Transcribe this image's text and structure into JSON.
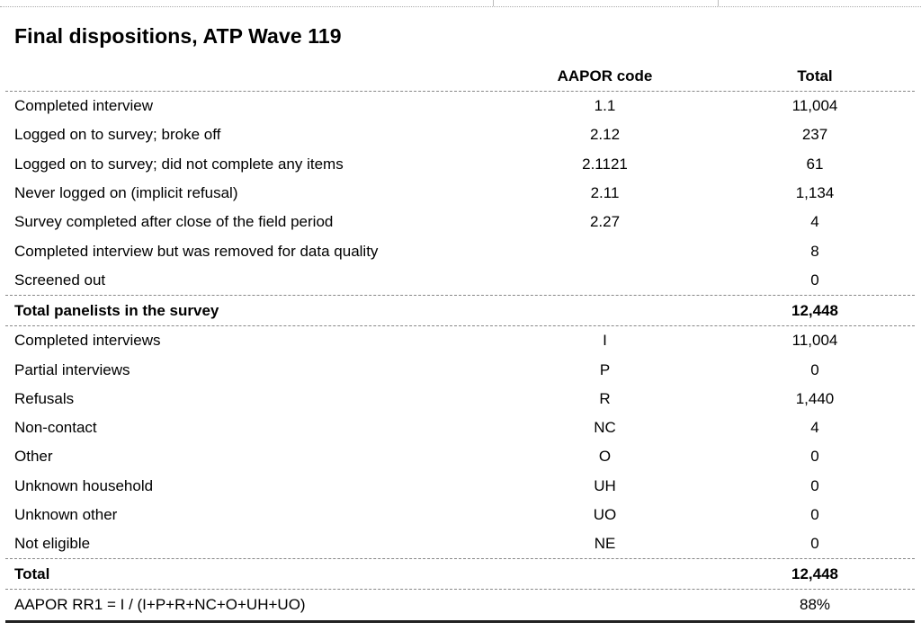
{
  "title": "Final dispositions, ATP Wave 119",
  "columns": {
    "code": "AAPOR code",
    "total": "Total"
  },
  "dispositions": [
    {
      "label": "Completed interview",
      "code": "1.1",
      "total": "11,004"
    },
    {
      "label": "Logged on to survey; broke off",
      "code": "2.12",
      "total": "237"
    },
    {
      "label": "Logged on to survey; did not complete any items",
      "code": "2.1121",
      "total": "61"
    },
    {
      "label": "Never logged on (implicit refusal)",
      "code": "2.11",
      "total": "1,134"
    },
    {
      "label": "Survey completed after close of the field period",
      "code": "2.27",
      "total": "4"
    },
    {
      "label": "Completed interview but was removed for data quality",
      "code": "",
      "total": "8"
    },
    {
      "label": "Screened out",
      "code": "",
      "total": "0"
    }
  ],
  "panel_total": {
    "label": "Total panelists in the survey",
    "code": "",
    "total": "12,448"
  },
  "categories": [
    {
      "label": "Completed interviews",
      "code": "I",
      "total": "11,004"
    },
    {
      "label": "Partial interviews",
      "code": "P",
      "total": "0"
    },
    {
      "label": "Refusals",
      "code": "R",
      "total": "1,440"
    },
    {
      "label": "Non-contact",
      "code": "NC",
      "total": "4"
    },
    {
      "label": "Other",
      "code": "O",
      "total": "0"
    },
    {
      "label": "Unknown household",
      "code": "UH",
      "total": "0"
    },
    {
      "label": "Unknown other",
      "code": "UO",
      "total": "0"
    },
    {
      "label": "Not eligible",
      "code": "NE",
      "total": "0"
    }
  ],
  "grand_total": {
    "label": "Total",
    "code": "",
    "total": "12,448"
  },
  "response_rate": {
    "label": "AAPOR RR1 = I / (I+P+R+NC+O+UH+UO)",
    "code": "",
    "total": "88%"
  }
}
